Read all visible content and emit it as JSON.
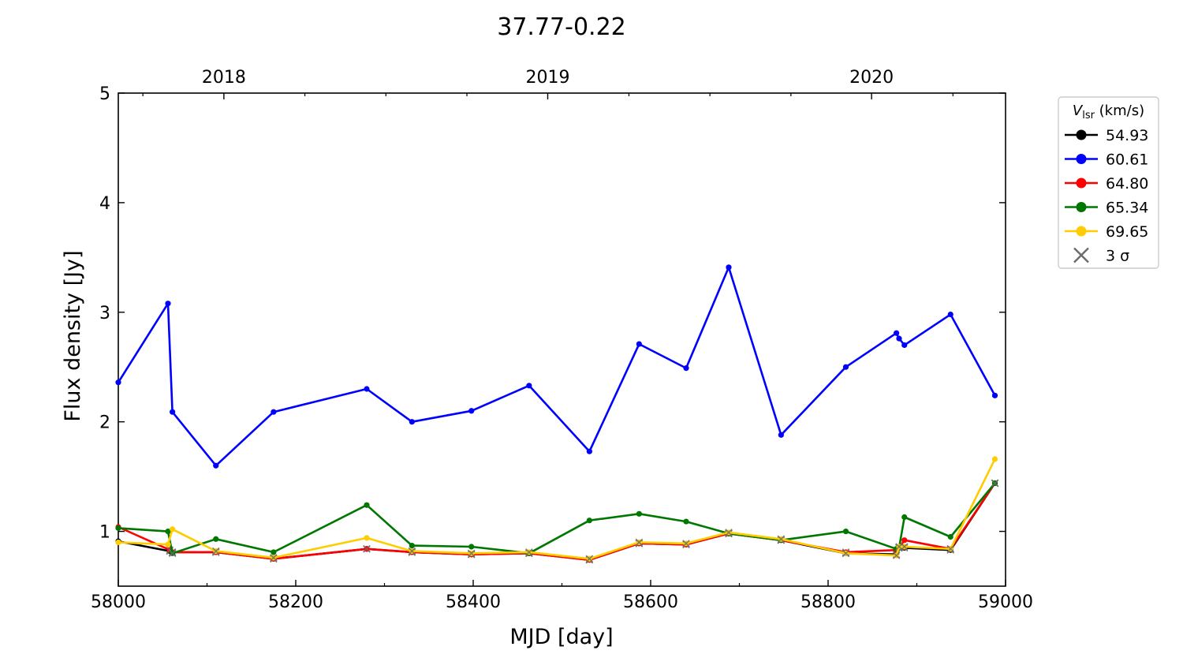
{
  "chart_data": {
    "type": "line",
    "title": "37.77-0.22",
    "xlabel": "MJD [day]",
    "ylabel": "Flux density [Jy]",
    "xlim": [
      58000,
      59000
    ],
    "ylim": [
      0.5,
      5
    ],
    "x_ticks": [
      "58000",
      "58200",
      "58400",
      "58600",
      "58800",
      "59000"
    ],
    "y_ticks": [
      "1",
      "2",
      "3",
      "4",
      "5"
    ],
    "top_axis_ticks": [
      {
        "x": 58119,
        "label": "2018"
      },
      {
        "x": 58484,
        "label": "2019"
      },
      {
        "x": 58849,
        "label": "2020"
      }
    ],
    "legend": {
      "title_main": "V",
      "title_sub": "lsr",
      "title_units": " (km/s)",
      "position": "outside-right",
      "sigma_label": "3 σ"
    },
    "series": [
      {
        "name": "54.93",
        "color": "#000000",
        "x": [
          58000,
          58058,
          58061,
          58110,
          58175,
          58280,
          58331,
          58398,
          58463,
          58531,
          58587,
          58640,
          58688,
          58747,
          58820,
          58877,
          58880,
          58886,
          58938,
          58988
        ],
        "y": [
          0.91,
          0.82,
          0.81,
          0.81,
          0.75,
          0.84,
          0.81,
          0.79,
          0.8,
          0.74,
          0.89,
          0.88,
          0.98,
          0.92,
          0.8,
          0.79,
          0.85,
          0.85,
          0.83,
          1.44
        ],
        "sigma": [
          false,
          true,
          true,
          true,
          true,
          true,
          true,
          true,
          true,
          true,
          true,
          true,
          true,
          true,
          true,
          true,
          true,
          true,
          true,
          true
        ]
      },
      {
        "name": "60.61",
        "color": "#0000ff",
        "x": [
          58000,
          58056,
          58061,
          58110,
          58175,
          58280,
          58331,
          58398,
          58463,
          58531,
          58587,
          58640,
          58688,
          58747,
          58820,
          58877,
          58880,
          58886,
          58938,
          58988
        ],
        "y": [
          2.36,
          3.08,
          2.09,
          1.6,
          2.09,
          2.3,
          2.0,
          2.1,
          2.33,
          1.73,
          2.71,
          2.49,
          3.41,
          1.88,
          2.5,
          2.81,
          2.76,
          2.7,
          2.98,
          2.24
        ],
        "sigma": [
          false,
          false,
          false,
          false,
          false,
          false,
          false,
          false,
          false,
          false,
          false,
          false,
          false,
          false,
          false,
          false,
          false,
          false,
          false,
          false
        ]
      },
      {
        "name": "64.80",
        "color": "#ff0000",
        "x": [
          58000,
          58058,
          58061,
          58110,
          58175,
          58280,
          58331,
          58398,
          58463,
          58531,
          58587,
          58640,
          58688,
          58747,
          58820,
          58877,
          58880,
          58886,
          58938,
          58988
        ],
        "y": [
          1.04,
          0.83,
          0.81,
          0.81,
          0.75,
          0.84,
          0.81,
          0.79,
          0.8,
          0.74,
          0.89,
          0.88,
          0.98,
          0.92,
          0.81,
          0.83,
          0.85,
          0.92,
          0.84,
          1.44
        ],
        "sigma": [
          false,
          true,
          true,
          true,
          true,
          true,
          true,
          true,
          true,
          true,
          true,
          true,
          true,
          true,
          true,
          false,
          true,
          false,
          true,
          true
        ]
      },
      {
        "name": "65.34",
        "color": "#007700",
        "x": [
          58000,
          58056,
          58061,
          58110,
          58175,
          58280,
          58331,
          58398,
          58463,
          58531,
          58587,
          58640,
          58688,
          58747,
          58820,
          58877,
          58880,
          58886,
          58938,
          58988
        ],
        "y": [
          1.03,
          1.0,
          0.8,
          0.93,
          0.81,
          1.24,
          0.87,
          0.86,
          0.8,
          1.1,
          1.16,
          1.09,
          0.98,
          0.92,
          1.0,
          0.84,
          0.85,
          1.13,
          0.95,
          1.44
        ],
        "sigma": [
          false,
          false,
          true,
          false,
          false,
          false,
          false,
          false,
          false,
          false,
          false,
          false,
          true,
          true,
          false,
          false,
          true,
          false,
          false,
          true
        ]
      },
      {
        "name": "69.65",
        "color": "#ffcc00",
        "x": [
          58000,
          58056,
          58061,
          58110,
          58175,
          58280,
          58331,
          58398,
          58463,
          58531,
          58587,
          58640,
          58688,
          58747,
          58820,
          58877,
          58880,
          58886,
          58938,
          58988
        ],
        "y": [
          0.9,
          0.88,
          1.02,
          0.82,
          0.76,
          0.94,
          0.82,
          0.8,
          0.81,
          0.75,
          0.9,
          0.89,
          0.99,
          0.93,
          0.8,
          0.78,
          0.86,
          0.86,
          0.84,
          1.66
        ],
        "sigma": [
          false,
          false,
          false,
          true,
          true,
          false,
          true,
          true,
          true,
          true,
          true,
          true,
          true,
          true,
          true,
          true,
          true,
          true,
          true,
          false
        ]
      }
    ]
  }
}
